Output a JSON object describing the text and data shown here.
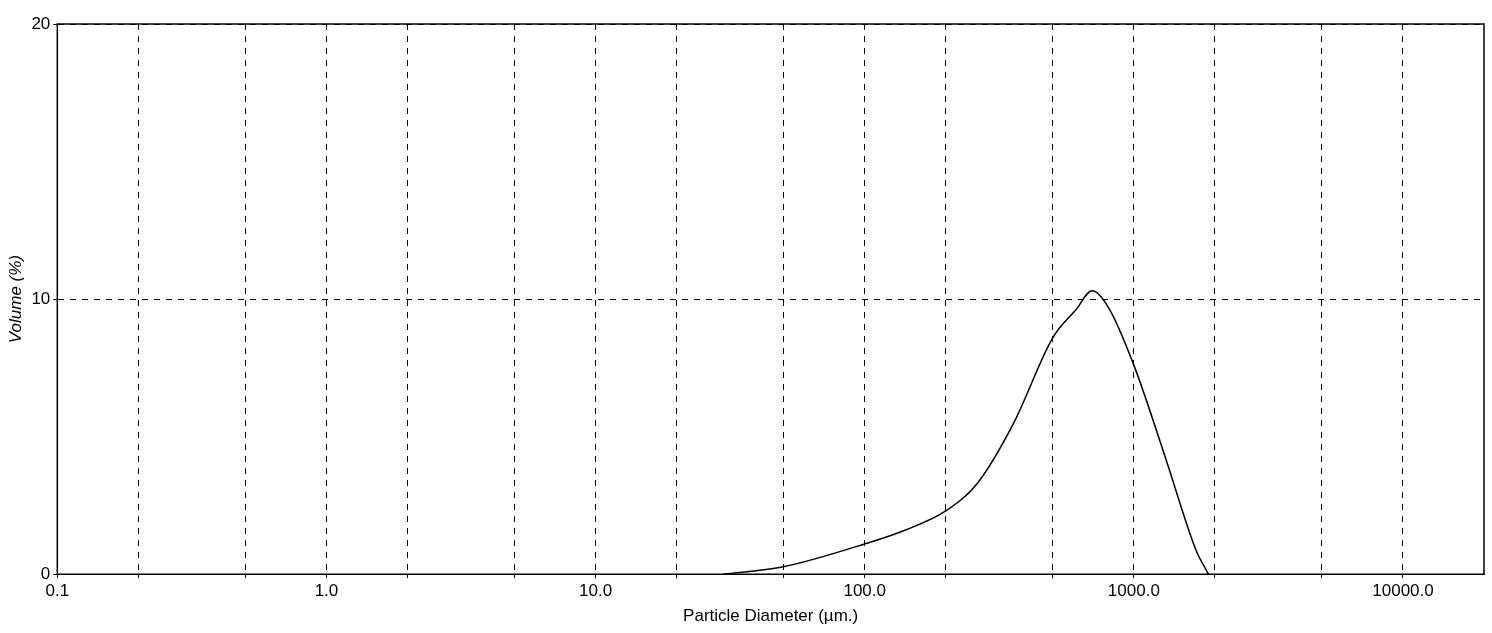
{
  "chart_data": {
    "type": "line",
    "xlabel": "Particle Diameter (µm.)",
    "ylabel": "Volume (%)",
    "series": [
      {
        "color": "#000000",
        "x": [
          29.7,
          49.3,
          100,
          141,
          200,
          262,
          358,
          500,
          608,
          700,
          804,
          1000,
          1324,
          1698,
          1892
        ],
        "values": [
          0,
          0.26,
          1.1,
          1.6,
          2.3,
          3.3,
          5.5,
          8.6,
          9.6,
          10.3,
          9.7,
          7.6,
          4.1,
          0.9,
          0
        ]
      }
    ],
    "log": "x",
    "xlim": [
      0.1,
      20000
    ],
    "xticks": [
      0.1,
      {
        "value": 0.2,
        "label": null
      },
      {
        "value": 0.5,
        "label": null
      },
      {
        "value": 1,
        "label": "1.0"
      },
      {
        "value": 2,
        "label": null
      },
      {
        "value": 5,
        "label": null
      },
      {
        "value": 10,
        "label": "10.0"
      },
      {
        "value": 20,
        "label": null
      },
      {
        "value": 50,
        "label": null
      },
      {
        "value": 100,
        "label": "100.0"
      },
      {
        "value": 200,
        "label": null
      },
      {
        "value": 500,
        "label": null
      },
      {
        "value": 1000,
        "label": "1000.0"
      },
      {
        "value": 2000,
        "label": null
      },
      {
        "value": 5000,
        "label": null
      },
      {
        "value": 10000,
        "label": "10000.0"
      }
    ],
    "ylim": [
      0,
      20
    ],
    "yticks": [
      0,
      10,
      20
    ],
    "grid": true,
    "legend": false,
    "marker": "none",
    "line_style": "solid"
  }
}
